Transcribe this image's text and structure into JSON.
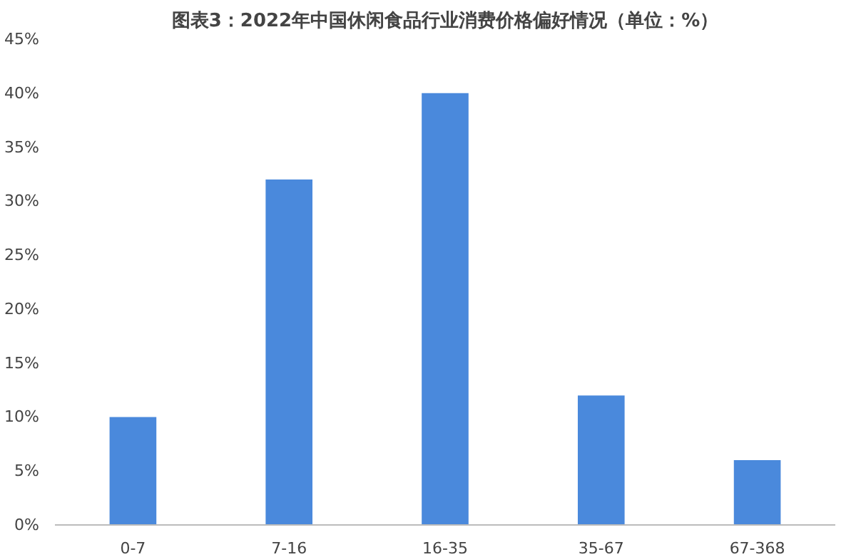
{
  "chart_data": {
    "type": "bar",
    "title": "图表3：2022年中国休闲食品行业消费价格偏好情况（单位：%）",
    "categories": [
      "0-7",
      "7-16",
      "16-35",
      "35-67",
      "67-368"
    ],
    "values": [
      10,
      32,
      40,
      12,
      6
    ],
    "color": "#4a89dc",
    "ylim": [
      0,
      45
    ],
    "yticks": [
      {
        "value": 0,
        "label": "0%"
      },
      {
        "value": 5,
        "label": "5%"
      },
      {
        "value": 10,
        "label": "10%"
      },
      {
        "value": 15,
        "label": "15%"
      },
      {
        "value": 20,
        "label": "20%"
      },
      {
        "value": 25,
        "label": "25%"
      },
      {
        "value": 30,
        "label": "30%"
      },
      {
        "value": 35,
        "label": "35%"
      },
      {
        "value": 40,
        "label": "40%"
      },
      {
        "value": 45,
        "label": "45%"
      }
    ],
    "grid": false
  }
}
